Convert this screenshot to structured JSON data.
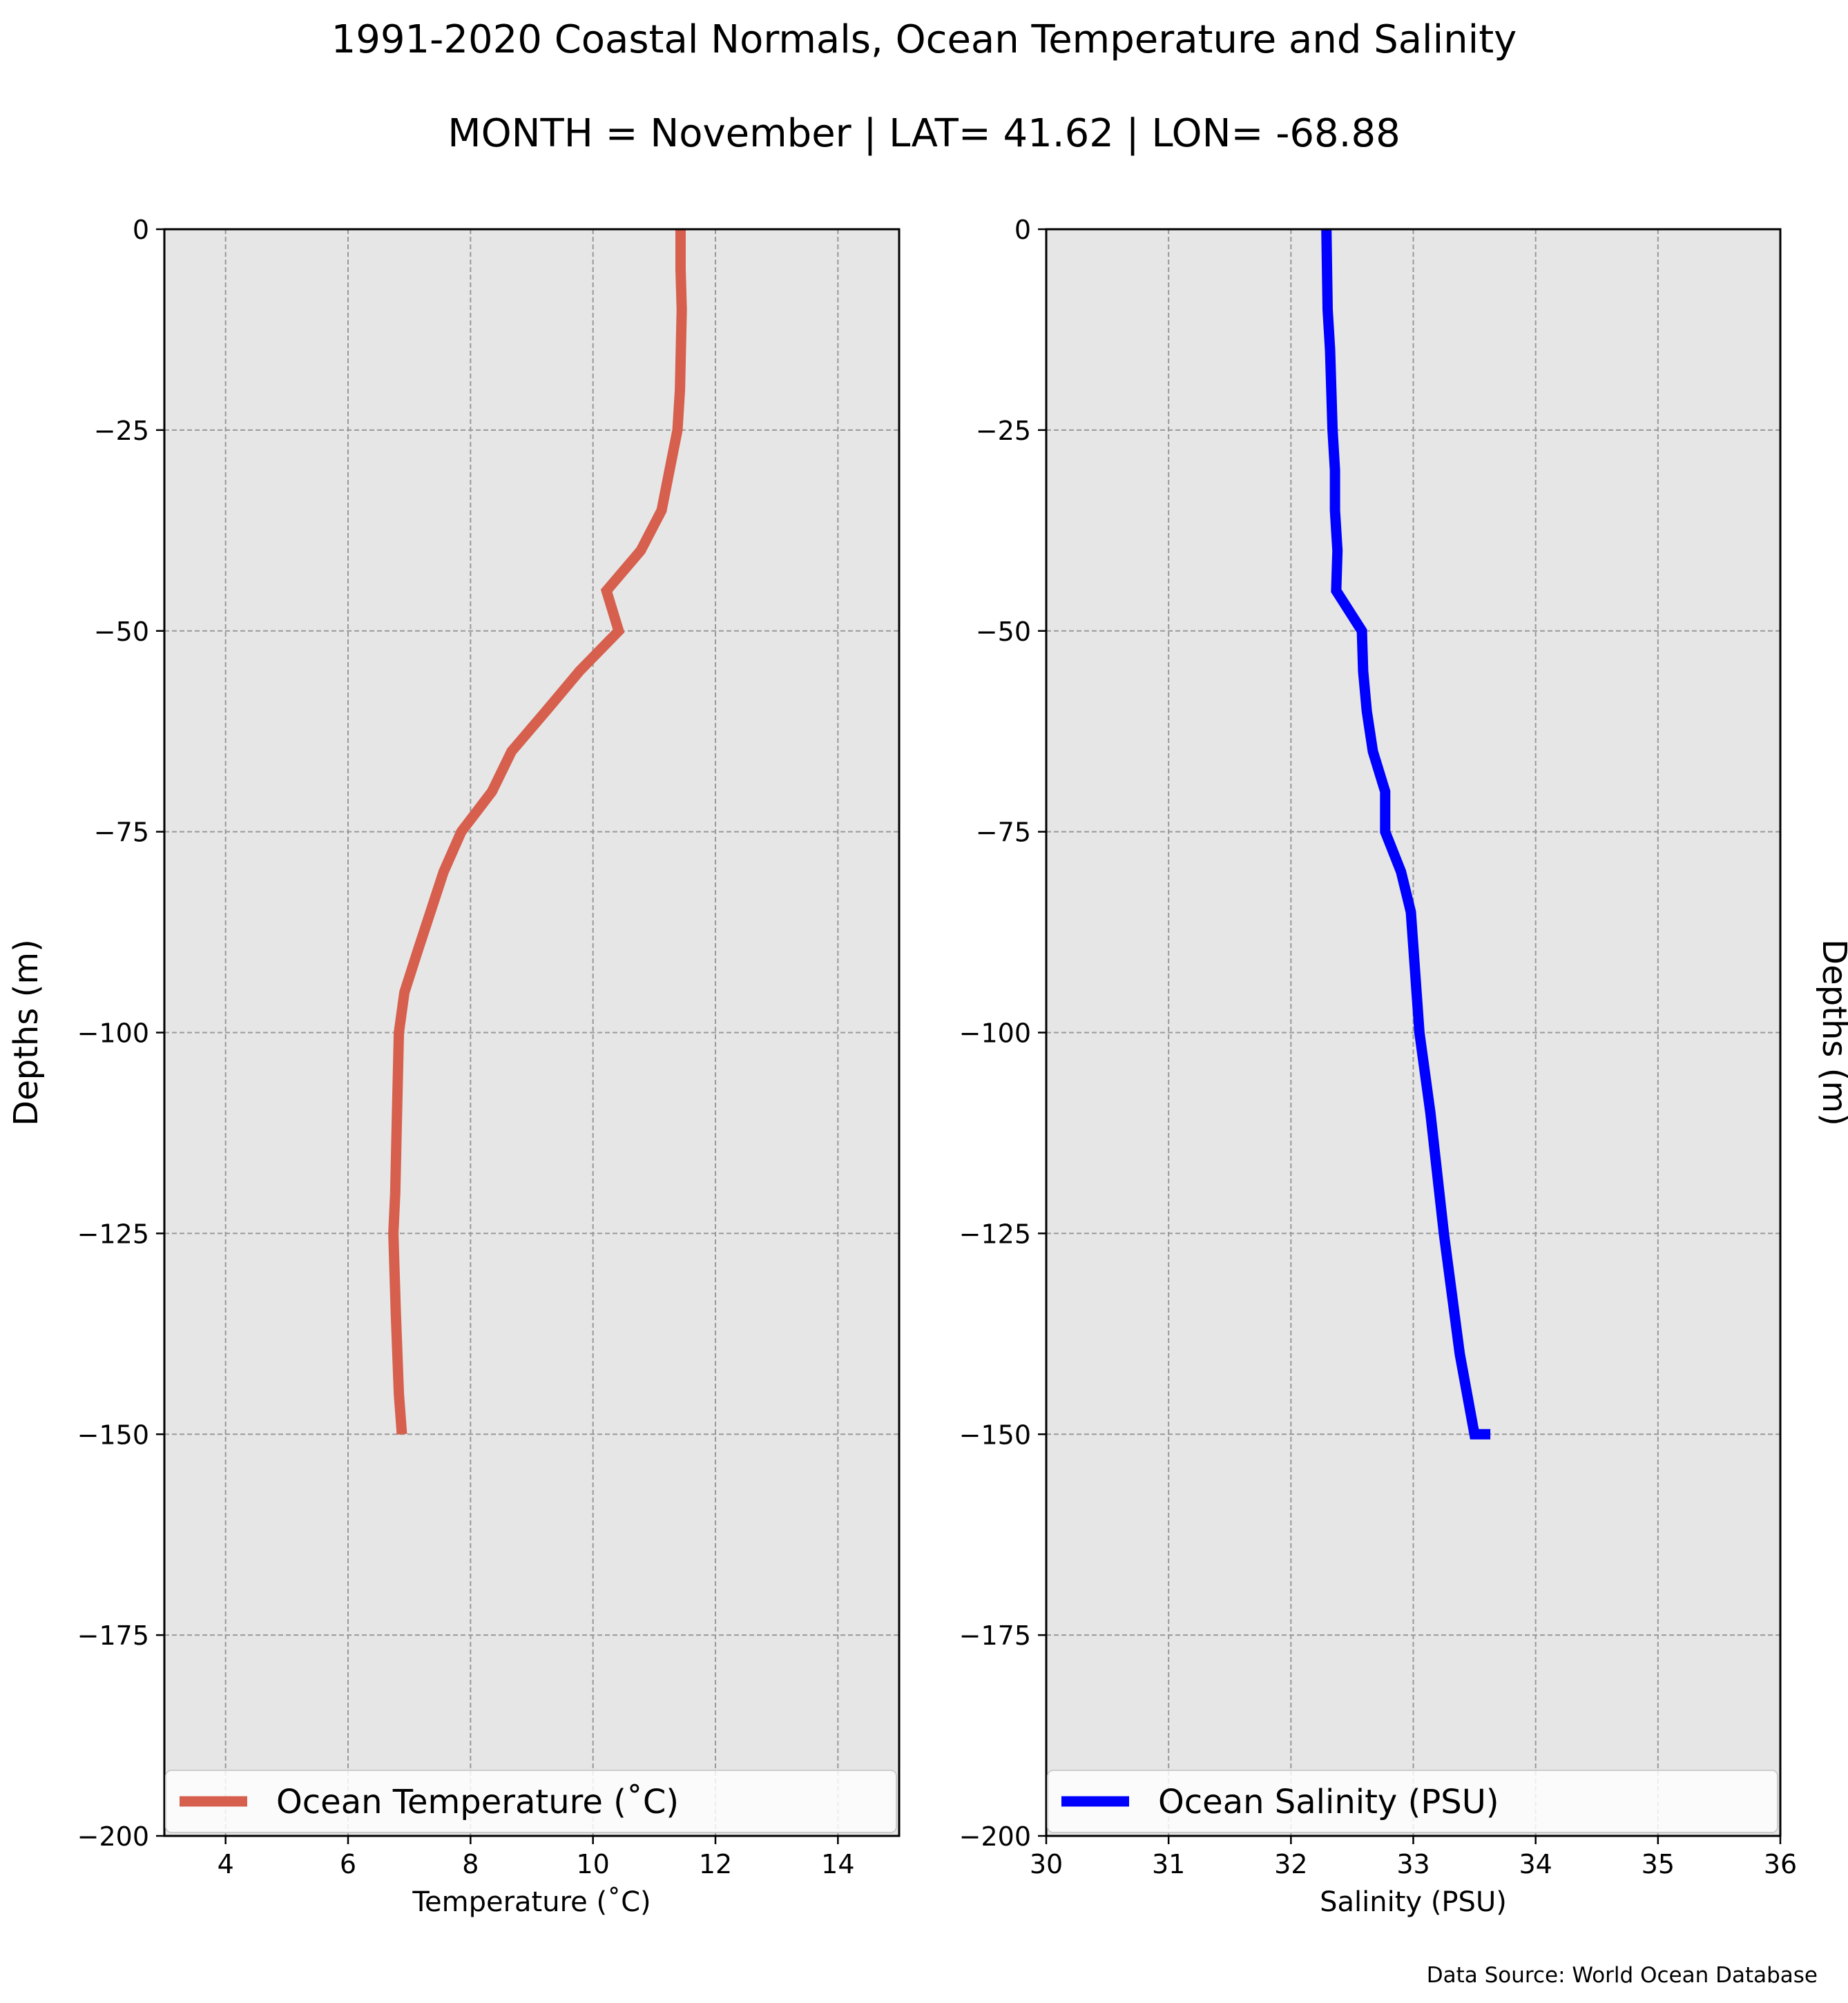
{
  "title": "1991-2020 Coastal Normals, Ocean Temperature and Salinity",
  "subtitle": "MONTH = November | LAT= 41.62 | LON= -68.88",
  "source_note": "Data Source: World Ocean Database",
  "colors": {
    "plot_background": "#e6e6e6",
    "grid": "#999999",
    "temperature_line": "#d65f4d",
    "salinity_line": "#0000ff"
  },
  "chart_data": [
    {
      "type": "line",
      "orientation": "profile",
      "xlabel": "Temperature ($^\\circ$C)",
      "xlabel_display": "Temperature (˚C)",
      "ylabel": "Depths (m)",
      "ylabel_side": "left",
      "xlim": [
        3,
        15
      ],
      "ylim": [
        -200,
        0
      ],
      "xticks": [
        4,
        6,
        8,
        10,
        12,
        14
      ],
      "xtick_labels": [
        "4",
        "6",
        "8",
        "10",
        "12",
        "14"
      ],
      "yticks": [
        0,
        -25,
        -50,
        -75,
        -100,
        -125,
        -150,
        -175,
        -200
      ],
      "ytick_labels": [
        "0",
        "−25",
        "−50",
        "−75",
        "−100",
        "−125",
        "−150",
        "−175",
        "−200"
      ],
      "grid": true,
      "legend_position": "bottom",
      "series": [
        {
          "name": "Ocean Temperature (˚C)",
          "color": "#d65f4d",
          "x": [
            11.43,
            11.43,
            11.45,
            11.42,
            11.38,
            11.25,
            11.12,
            10.78,
            10.22,
            10.42,
            9.78,
            9.23,
            8.67,
            8.35,
            7.85,
            7.56,
            7.13,
            6.92,
            6.83,
            6.8,
            6.77,
            6.74,
            6.78,
            6.83,
            6.88
          ],
          "y": [
            0,
            -5,
            -10,
            -20,
            -25,
            -30,
            -35,
            -40,
            -45,
            -50,
            -55,
            -60,
            -65,
            -70,
            -75,
            -80,
            -90,
            -95,
            -100,
            -110,
            -120,
            -125,
            -135,
            -145,
            -150
          ]
        }
      ]
    },
    {
      "type": "line",
      "orientation": "profile",
      "xlabel": "Salinity (PSU)",
      "ylabel": "Depths (m)",
      "ylabel_side": "right",
      "xlim": [
        30,
        36
      ],
      "ylim": [
        -200,
        0
      ],
      "xticks": [
        30,
        31,
        32,
        33,
        34,
        35,
        36
      ],
      "xtick_labels": [
        "30",
        "31",
        "32",
        "33",
        "34",
        "35",
        "36"
      ],
      "yticks": [
        0,
        -25,
        -50,
        -75,
        -100,
        -125,
        -150,
        -175,
        -200
      ],
      "ytick_labels": [
        "0",
        "−25",
        "−50",
        "−75",
        "−100",
        "−125",
        "−150",
        "−175",
        "−200"
      ],
      "grid": true,
      "legend_position": "bottom",
      "series": [
        {
          "name": "Ocean Salinity (PSU)",
          "color": "#0000ff",
          "x": [
            32.29,
            32.3,
            32.32,
            32.33,
            32.34,
            32.36,
            32.36,
            32.38,
            32.37,
            32.37,
            32.58,
            32.59,
            32.62,
            32.67,
            32.77,
            32.77,
            32.9,
            32.98,
            33.05,
            33.14,
            33.25,
            33.38,
            33.5,
            33.63
          ],
          "y": [
            0,
            -10,
            -15,
            -20,
            -25,
            -30,
            -35,
            -40,
            -45,
            -45,
            -50,
            -55,
            -60,
            -65,
            -70,
            -75,
            -80,
            -85,
            -100,
            -110,
            -125,
            -140,
            -150,
            -150
          ]
        }
      ]
    }
  ]
}
